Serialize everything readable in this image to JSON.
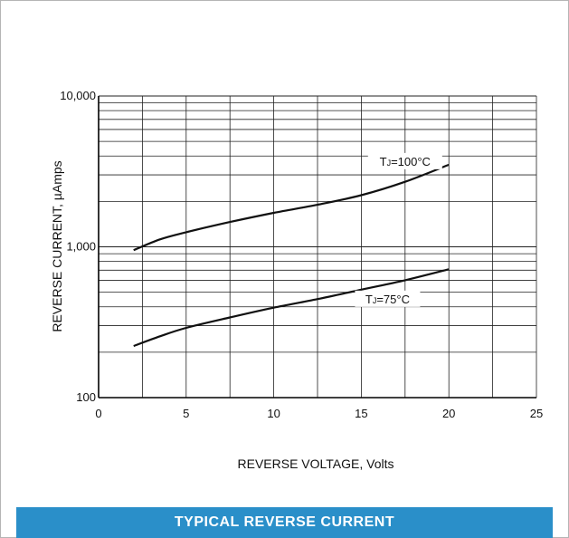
{
  "chart_data": {
    "type": "line",
    "title": "TYPICAL REVERSE CURRENT",
    "xlabel": "REVERSE VOLTAGE, Volts",
    "ylabel": "REVERSE CURRENT, µAmps",
    "xlim": [
      0,
      25
    ],
    "ylim": [
      100,
      10000
    ],
    "yscale": "log",
    "grid": true,
    "x_ticks": [
      {
        "value": 0,
        "label": "0"
      },
      {
        "value": 5,
        "label": "5"
      },
      {
        "value": 10,
        "label": "10"
      },
      {
        "value": 15,
        "label": "15"
      },
      {
        "value": 20,
        "label": "20"
      },
      {
        "value": 25,
        "label": "25"
      }
    ],
    "y_ticks": [
      {
        "value": 100,
        "label": "100"
      },
      {
        "value": 1000,
        "label": "1,000"
      },
      {
        "value": 10000,
        "label": "10,000"
      }
    ],
    "series": [
      {
        "name": "TJ=100°C",
        "label_main": "T",
        "label_sub": "J",
        "label_rest": "=100°C",
        "label_at": {
          "x": 17.5,
          "y": 3600
        },
        "points": [
          [
            2,
            950
          ],
          [
            3.5,
            1120
          ],
          [
            5,
            1250
          ],
          [
            7.5,
            1460
          ],
          [
            10,
            1680
          ],
          [
            12.5,
            1900
          ],
          [
            15,
            2200
          ],
          [
            17.5,
            2700
          ],
          [
            20,
            3500
          ]
        ]
      },
      {
        "name": "TJ=75°C",
        "label_main": "T",
        "label_sub": "J",
        "label_rest": "=75°C",
        "label_at": {
          "x": 16.5,
          "y": 440
        },
        "points": [
          [
            2,
            220
          ],
          [
            3.5,
            255
          ],
          [
            5,
            290
          ],
          [
            7.5,
            340
          ],
          [
            10,
            395
          ],
          [
            12.5,
            450
          ],
          [
            15,
            520
          ],
          [
            17.5,
            600
          ],
          [
            20,
            710
          ]
        ]
      }
    ]
  },
  "banner": {
    "text": "TYPICAL REVERSE CURRENT",
    "color": "#2a8fc9"
  },
  "colors": {
    "frame_border": "#b5b5b5",
    "grid": "#222222",
    "line": "#111111"
  }
}
